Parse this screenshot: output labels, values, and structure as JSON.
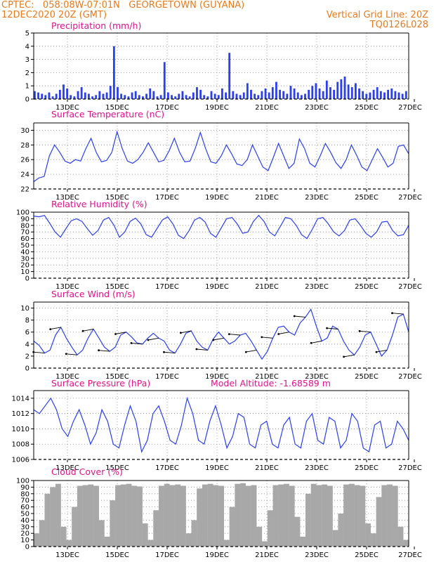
{
  "header": {
    "line1_left": "CPTEC:   058:08W-07:01N   GEORGETOWN (GUYANA)",
    "line2_left": "12DEC2020 20Z (GMT)",
    "line2_right": "Vertical Grid Line: 20Z",
    "line3_right": "TQ0126L028"
  },
  "colors": {
    "header": "#e87a1e",
    "title": "#e0148c",
    "series": "#2b3ff0",
    "cloud": "#a8a8a8",
    "grid": "#8a8a8a"
  },
  "chart_data": [
    {
      "type": "bar",
      "title": "Precipitation (mm/h)",
      "x_tick_labels": [
        "13DEC",
        "15DEC",
        "17DEC",
        "19DEC",
        "21DEC",
        "23DEC",
        "25DEC",
        "27DEC"
      ],
      "ylim": [
        0,
        5
      ],
      "yticks": [
        0,
        1,
        2,
        3,
        4,
        5
      ],
      "grid": "dotted",
      "values": [
        0.6,
        0.5,
        0.4,
        0.3,
        0.5,
        0.2,
        0.4,
        0.7,
        1.1,
        0.8,
        0.3,
        0.2,
        0.6,
        0.9,
        0.5,
        0.4,
        0.2,
        0.3,
        0.6,
        0.4,
        0.5,
        1.0,
        4.0,
        0.9,
        0.4,
        0.3,
        0.2,
        0.5,
        0.6,
        0.3,
        0.2,
        0.4,
        0.8,
        0.6,
        0.2,
        0.3,
        2.8,
        0.5,
        0.3,
        0.2,
        0.4,
        0.6,
        0.3,
        0.2,
        0.5,
        0.9,
        0.7,
        0.3,
        0.2,
        0.6,
        0.4,
        0.3,
        0.8,
        0.5,
        3.5,
        0.6,
        0.4,
        0.3,
        0.5,
        1.2,
        0.7,
        0.4,
        0.3,
        0.6,
        0.8,
        0.5,
        0.9,
        1.3,
        0.7,
        0.6,
        0.4,
        1.0,
        0.8,
        0.5,
        0.3,
        0.4,
        0.7,
        1.0,
        1.2,
        0.8,
        0.6,
        1.4,
        0.9,
        0.7,
        1.3,
        1.5,
        1.7,
        1.1,
        0.9,
        1.2,
        0.8,
        0.6,
        0.4,
        0.5,
        0.7,
        0.9,
        0.6,
        0.5,
        0.7,
        0.8,
        0.6,
        0.5,
        0.4,
        0.6
      ]
    },
    {
      "type": "line",
      "title": "Surface Temperature (nC)",
      "x_tick_labels": [
        "13DEC",
        "15DEC",
        "17DEC",
        "19DEC",
        "21DEC",
        "23DEC",
        "25DEC",
        "27DEC"
      ],
      "ylim": [
        22,
        31
      ],
      "yticks": [
        22,
        24,
        26,
        28,
        30
      ],
      "values": [
        23.0,
        23.5,
        23.7,
        26.5,
        28.0,
        27.0,
        25.8,
        25.5,
        26.0,
        25.8,
        27.5,
        28.9,
        27.0,
        25.7,
        25.9,
        27.0,
        29.8,
        27.5,
        25.8,
        25.5,
        26.0,
        27.0,
        28.3,
        27.0,
        25.7,
        25.9,
        27.2,
        28.9,
        27.0,
        25.7,
        25.8,
        27.5,
        29.7,
        27.5,
        25.7,
        25.5,
        26.5,
        28.0,
        26.8,
        25.4,
        25.2,
        26.0,
        28.0,
        26.5,
        25.0,
        24.5,
        26.3,
        28.2,
        26.5,
        24.8,
        25.5,
        28.8,
        27.5,
        25.5,
        25.0,
        26.5,
        28.2,
        27.0,
        25.6,
        24.8,
        26.0,
        28.0,
        26.6,
        25.0,
        24.5,
        26.0,
        27.5,
        26.3,
        25.0,
        25.5,
        27.8,
        28.0,
        26.8
      ]
    },
    {
      "type": "line",
      "title": "Relative Humidity (%)",
      "x_tick_labels": [
        "13DEC",
        "15DEC",
        "17DEC",
        "19DEC",
        "21DEC",
        "23DEC",
        "25DEC",
        "27DEC"
      ],
      "ylim": [
        0,
        100
      ],
      "yticks": [
        0,
        10,
        20,
        30,
        40,
        50,
        60,
        70,
        80,
        90,
        100
      ],
      "values": [
        94,
        93,
        95,
        83,
        70,
        62,
        75,
        87,
        90,
        86,
        75,
        65,
        72,
        88,
        92,
        80,
        62,
        70,
        86,
        91,
        82,
        66,
        62,
        75,
        88,
        93,
        82,
        65,
        60,
        72,
        88,
        92,
        85,
        68,
        62,
        76,
        90,
        92,
        82,
        68,
        70,
        86,
        95,
        86,
        70,
        64,
        78,
        92,
        90,
        80,
        66,
        60,
        74,
        90,
        92,
        82,
        70,
        64,
        72,
        88,
        90,
        80,
        68,
        62,
        70,
        85,
        86,
        72,
        64,
        66,
        80
      ]
    },
    {
      "type": "line",
      "title": "Surface Wind (m/s)",
      "x_tick_labels": [
        "13DEC",
        "15DEC",
        "17DEC",
        "19DEC",
        "21DEC",
        "23DEC",
        "25DEC",
        "27DEC"
      ],
      "ylim": [
        0,
        11
      ],
      "yticks": [
        0,
        2,
        4,
        6,
        8,
        10
      ],
      "values": [
        4.5,
        3.8,
        2.5,
        3.0,
        5.5,
        6.8,
        5.0,
        3.5,
        2.2,
        3.0,
        5.0,
        6.5,
        5.0,
        3.5,
        2.8,
        3.5,
        5.5,
        6.0,
        5.2,
        4.2,
        4.0,
        5.0,
        5.8,
        5.0,
        4.5,
        3.0,
        2.5,
        4.0,
        5.8,
        6.2,
        4.5,
        3.5,
        3.0,
        4.8,
        6.0,
        5.0,
        4.0,
        4.5,
        5.5,
        5.8,
        4.5,
        3.0,
        1.5,
        2.8,
        5.0,
        6.8,
        7.0,
        6.0,
        5.5,
        7.5,
        8.5,
        9.8,
        7.0,
        4.5,
        5.0,
        7.0,
        6.5,
        4.5,
        3.0,
        2.2,
        3.5,
        5.5,
        6.0,
        4.0,
        2.0,
        3.0,
        5.5,
        8.5,
        9.0,
        6.0
      ]
    },
    {
      "type": "line",
      "title": "Surface Pressure (hPa)",
      "annotation": "Model Altitude: -1.68589 m",
      "x_tick_labels": [
        "13DEC",
        "15DEC",
        "17DEC",
        "19DEC",
        "21DEC",
        "23DEC",
        "25DEC",
        "27DEC"
      ],
      "ylim": [
        1006,
        1015
      ],
      "yticks": [
        1006,
        1008,
        1010,
        1012,
        1014
      ],
      "values": [
        1012.5,
        1012.0,
        1013.0,
        1014.0,
        1012.5,
        1010.0,
        1009.0,
        1011.0,
        1012.5,
        1010.5,
        1008.0,
        1009.5,
        1012.5,
        1011.0,
        1008.0,
        1007.5,
        1010.5,
        1013.0,
        1011.0,
        1007.0,
        1008.5,
        1012.0,
        1013.0,
        1011.0,
        1008.5,
        1008.0,
        1010.5,
        1014.0,
        1012.0,
        1008.5,
        1008.0,
        1011.0,
        1013.0,
        1010.5,
        1007.5,
        1009.0,
        1012.0,
        1011.5,
        1008.0,
        1007.5,
        1010.5,
        1011.0,
        1008.0,
        1007.5,
        1010.5,
        1011.5,
        1008.0,
        1007.5,
        1011.0,
        1012.0,
        1008.5,
        1008.0,
        1011.5,
        1011.0,
        1007.5,
        1008.5,
        1012.0,
        1011.0,
        1007.5,
        1007.0,
        1010.5,
        1011.0,
        1007.5,
        1008.0,
        1011.0,
        1010.0,
        1008.5
      ]
    },
    {
      "type": "bar",
      "title": "Cloud Cover (%)",
      "x_tick_labels": [
        "13DEC",
        "15DEC",
        "17DEC",
        "19DEC",
        "21DEC",
        "23DEC",
        "25DEC",
        "27DEC"
      ],
      "ylim": [
        0,
        100
      ],
      "yticks": [
        0,
        10,
        20,
        30,
        40,
        50,
        60,
        70,
        80,
        90,
        100
      ],
      "values": [
        20,
        40,
        80,
        90,
        95,
        30,
        10,
        60,
        92,
        93,
        94,
        92,
        40,
        15,
        70,
        93,
        94,
        95,
        92,
        91,
        35,
        10,
        55,
        92,
        95,
        93,
        94,
        92,
        20,
        40,
        88,
        94,
        95,
        93,
        92,
        10,
        60,
        95,
        96,
        92,
        93,
        30,
        8,
        55,
        93,
        94,
        95,
        92,
        45,
        15,
        80,
        95,
        93,
        94,
        92,
        25,
        50,
        94,
        95,
        93,
        92,
        35,
        20,
        75,
        93,
        94,
        92,
        30,
        10
      ]
    }
  ]
}
